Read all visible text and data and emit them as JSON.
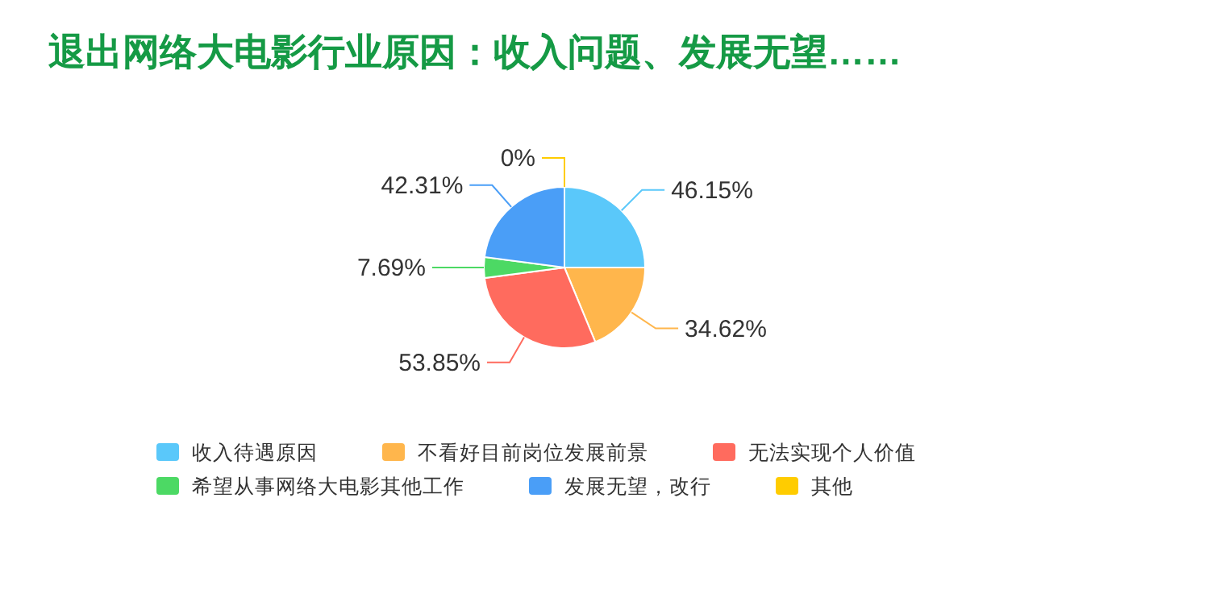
{
  "chart_data": {
    "type": "pie",
    "title": "退出网络大电影行业原因：收入问题、发展无望……",
    "categories": [
      "收入待遇原因",
      "不看好目前岗位发展前景",
      "无法实现个人价值",
      "希望从事网络大电影其他工作",
      "发展无望，改行",
      "其他"
    ],
    "values": [
      46.15,
      34.62,
      53.85,
      7.69,
      42.31,
      0
    ],
    "value_labels": [
      "46.15%",
      "34.62%",
      "53.85%",
      "7.69%",
      "42.31%",
      "0%"
    ],
    "colors": [
      "#5ac8fa",
      "#ffb64c",
      "#ff6b5e",
      "#4cd964",
      "#4a9ef7",
      "#ffcc00"
    ],
    "legend": "bottom"
  }
}
